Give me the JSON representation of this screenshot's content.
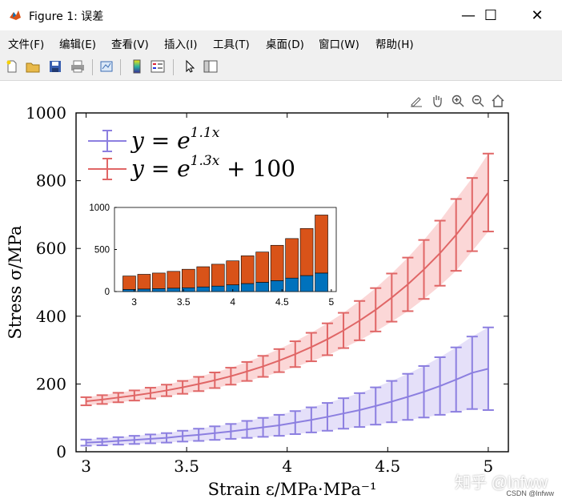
{
  "window": {
    "title": "Figure 1: 误差",
    "minimize": "—",
    "maximize": "☐",
    "close": "✕"
  },
  "menu": [
    "文件(F)",
    "编辑(E)",
    "查看(V)",
    "插入(I)",
    "工具(T)",
    "桌面(D)",
    "窗口(W)",
    "帮助(H)"
  ],
  "toolbar_icons": [
    "new-file-icon",
    "open-folder-icon",
    "save-icon",
    "print-icon",
    "link-plot-icon",
    "colorbar-icon",
    "legend-icon",
    "pointer-icon",
    "property-editor-icon"
  ],
  "axes_toolbar_icons": [
    "brush-icon",
    "pan-icon",
    "zoom-in-icon",
    "zoom-out-icon",
    "home-icon"
  ],
  "watermark": "知乎 @lnfww",
  "watermark_small": "CSDN @lnfww",
  "colors": {
    "red": "#e06666",
    "red_fill": "#f9c9c9",
    "blue": "#8c7fe0",
    "blue_fill": "#dcd6f7",
    "bar_red": "#d95319",
    "bar_blue": "#0072bd"
  },
  "chart_data": [
    {
      "type": "line",
      "xlabel": "Strain  ε/MPa·MPa⁻¹",
      "ylabel": "Stress  σ/MPa",
      "xlim": [
        2.95,
        5.1
      ],
      "ylim": [
        0,
        1000
      ],
      "xticks": [
        "3",
        "3.5",
        "4",
        "4.5",
        "5"
      ],
      "yticks": [
        "0",
        "200",
        "400",
        "600",
        "800",
        "1000"
      ],
      "grid": false,
      "legend_position": "top-left",
      "x": [
        3.0,
        3.08,
        3.16,
        3.24,
        3.32,
        3.4,
        3.48,
        3.56,
        3.64,
        3.72,
        3.8,
        3.88,
        3.96,
        4.04,
        4.12,
        4.2,
        4.28,
        4.36,
        4.44,
        4.52,
        4.6,
        4.68,
        4.76,
        4.84,
        4.92,
        5.0
      ],
      "series": [
        {
          "name": "y = e^{1.1x}",
          "legend_text": "y = e",
          "legend_exp": "1.1x",
          "legend_tail": "",
          "color": "#8c7fe0",
          "values": [
            27,
            29,
            32,
            35,
            38,
            41,
            46,
            50,
            55,
            60,
            66,
            72,
            78,
            86,
            94,
            103,
            113,
            123,
            135,
            148,
            162,
            177,
            194,
            213,
            233,
            245
          ],
          "errors": [
            9,
            10,
            11,
            12,
            13,
            14,
            16,
            18,
            20,
            22,
            25,
            28,
            31,
            34,
            37,
            41,
            45,
            50,
            55,
            61,
            68,
            76,
            85,
            95,
            107,
            122
          ]
        },
        {
          "name": "y = e^{1.3x} + 100",
          "legend_text": "y = e",
          "legend_exp": "1.3x",
          "legend_tail": " + 100",
          "color": "#e06666",
          "values": [
            149,
            154,
            160,
            166,
            173,
            181,
            190,
            200,
            211,
            223,
            237,
            252,
            269,
            288,
            309,
            332,
            358,
            387,
            419,
            455,
            494,
            538,
            586,
            640,
            700,
            765
          ],
          "errors": [
            12,
            13,
            14,
            15,
            16,
            17,
            19,
            21,
            23,
            25,
            28,
            31,
            34,
            38,
            42,
            47,
            52,
            58,
            64,
            71,
            79,
            87,
            96,
            106,
            108,
            115
          ]
        }
      ]
    },
    {
      "type": "bar",
      "stacked": true,
      "x": [
        2.95,
        3.1,
        3.25,
        3.4,
        3.55,
        3.7,
        3.85,
        4.0,
        4.15,
        4.3,
        4.45,
        4.6,
        4.75,
        4.9
      ],
      "xticks": [
        "3",
        "3.5",
        "4",
        "4.5",
        "5"
      ],
      "yticks": [
        "0",
        "500",
        "1000"
      ],
      "ylim": [
        0,
        1000
      ],
      "xlim": [
        2.8,
        5.05
      ],
      "series": [
        {
          "values": [
            25,
            30,
            35,
            40,
            45,
            55,
            65,
            80,
            95,
            110,
            130,
            160,
            190,
            220
          ]
        },
        {
          "values": [
            160,
            175,
            185,
            200,
            220,
            240,
            260,
            285,
            330,
            360,
            420,
            470,
            560,
            690
          ]
        }
      ]
    }
  ]
}
